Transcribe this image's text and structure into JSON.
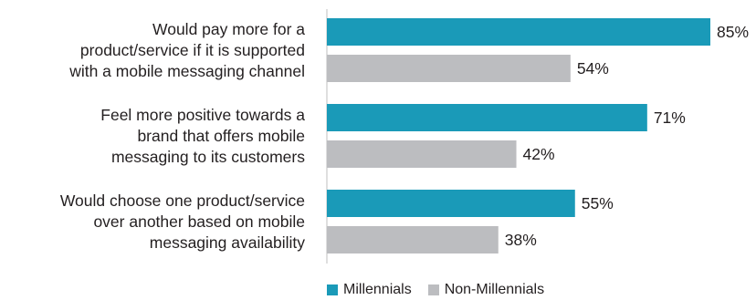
{
  "chart_data": {
    "type": "bar",
    "orientation": "horizontal",
    "categories": [
      "Would pay more for a product/service if it is supported with a mobile messaging channel",
      "Feel more positive towards a brand that offers mobile messaging to its customers",
      "Would choose one product/service over another based on mobile messaging availability"
    ],
    "category_lines": [
      [
        "Would pay more for a",
        "product/service if it is supported",
        "with a mobile messaging channel"
      ],
      [
        "Feel more positive towards a",
        "brand that offers mobile",
        "messaging to its customers"
      ],
      [
        "Would choose one product/service",
        "over another based on mobile",
        "messaging availability"
      ]
    ],
    "series": [
      {
        "name": "Millennials",
        "values": [
          85,
          71,
          55
        ],
        "color": "#1a9ab8"
      },
      {
        "name": "Non-Millennials",
        "values": [
          54,
          42,
          38
        ],
        "color": "#bcbdc0"
      }
    ],
    "value_suffix": "%",
    "xlim": [
      0,
      100
    ],
    "grid": false,
    "legend_position": "bottom"
  }
}
